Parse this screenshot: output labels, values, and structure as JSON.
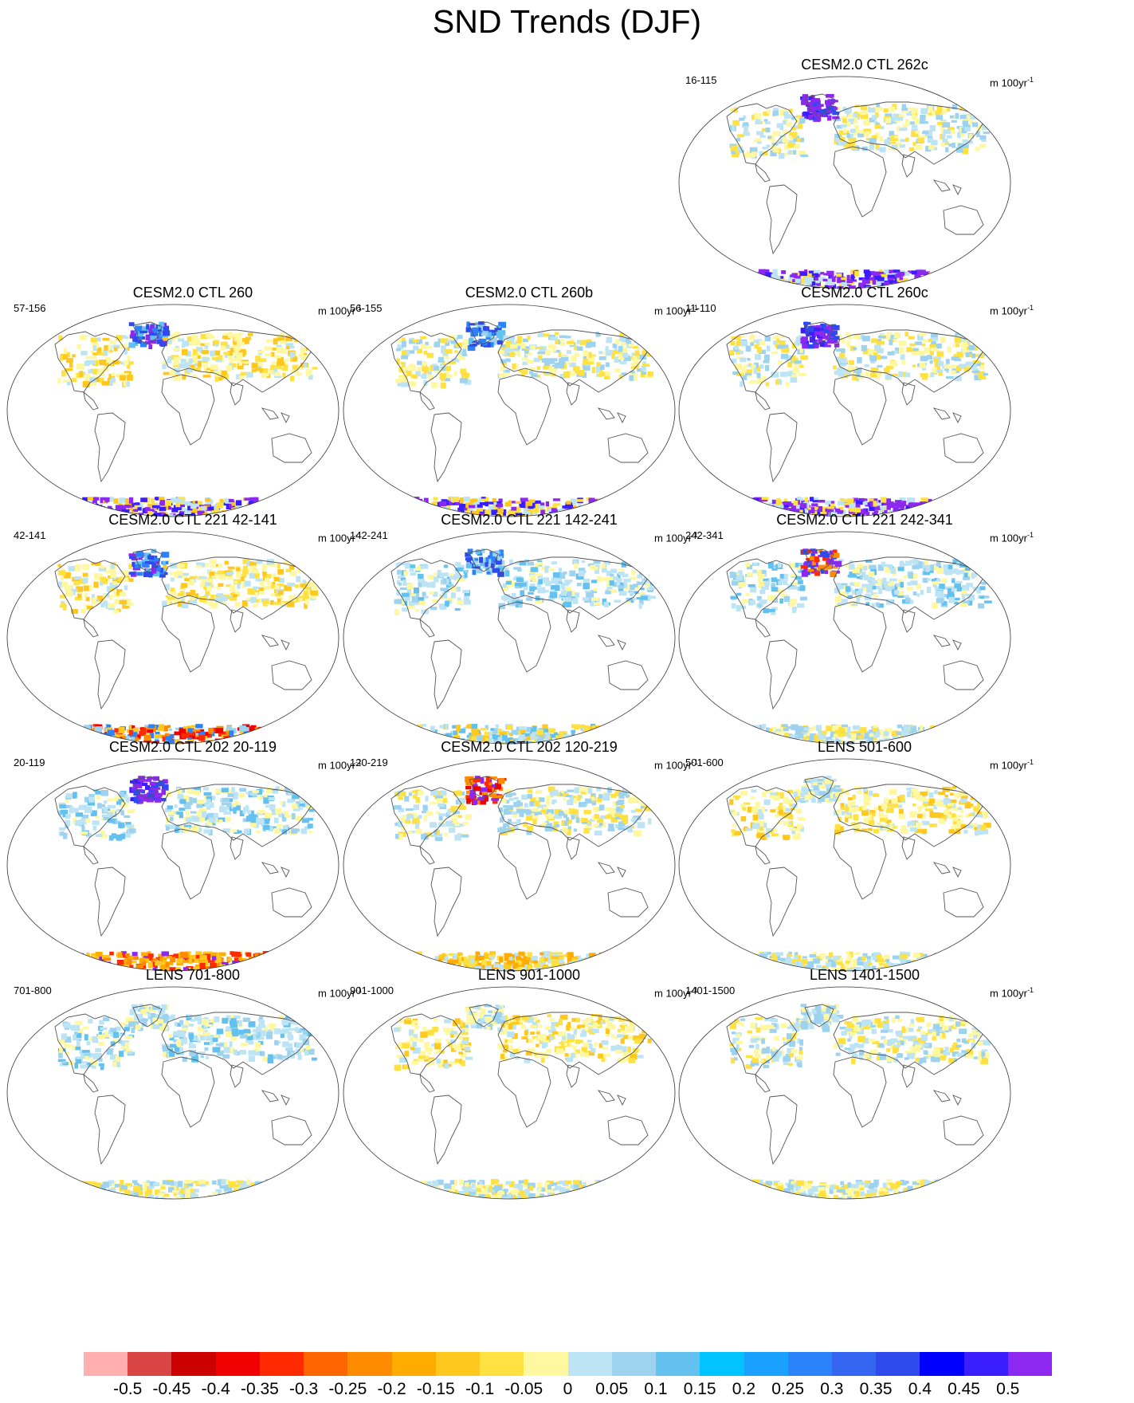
{
  "figure": {
    "title": "SND Trends (DJF)"
  },
  "unit": {
    "base": "m 100yr",
    "exponent": "-1"
  },
  "panels": [
    {
      "title": "CESM2.0 CTL 262c",
      "range": "16-115",
      "row": 0,
      "col": 2,
      "antarctic": "purple-strong",
      "greenland": "purple",
      "eurasia": "mixed-light"
    },
    {
      "title": "CESM2.0 CTL 260",
      "range": "57-156",
      "row": 1,
      "col": 0,
      "antarctic": "purple-yellow",
      "greenland": "blue-purple",
      "eurasia": "yellow"
    },
    {
      "title": "CESM2.0 CTL 260b",
      "range": "56-155",
      "row": 1,
      "col": 1,
      "antarctic": "purple-yellow",
      "greenland": "blue",
      "eurasia": "mixed-light"
    },
    {
      "title": "CESM2.0 CTL 260c",
      "range": "11-110",
      "row": 1,
      "col": 2,
      "antarctic": "purple-strong",
      "greenland": "purple",
      "eurasia": "mixed-light"
    },
    {
      "title": "CESM2.0 CTL 221 42-141",
      "range": "42-141",
      "row": 2,
      "col": 0,
      "antarctic": "red-blue",
      "greenland": "blue-purple",
      "eurasia": "yellow"
    },
    {
      "title": "CESM2.0 CTL 221 142-241",
      "range": "142-241",
      "row": 2,
      "col": 1,
      "antarctic": "yellow-blue",
      "greenland": "blue",
      "eurasia": "blue-light"
    },
    {
      "title": "CESM2.0 CTL 221 242-341",
      "range": "242-341",
      "row": 2,
      "col": 2,
      "antarctic": "light",
      "greenland": "orange-purple",
      "eurasia": "blue-light"
    },
    {
      "title": "CESM2.0 CTL 202 20-119",
      "range": "20-119",
      "row": 3,
      "col": 0,
      "antarctic": "orange-red",
      "greenland": "purple",
      "eurasia": "blue-light"
    },
    {
      "title": "CESM2.0 CTL 202 120-219",
      "range": "120-219",
      "row": 3,
      "col": 1,
      "antarctic": "orange",
      "greenland": "red",
      "eurasia": "mixed-light"
    },
    {
      "title": "LENS 501-600",
      "range": "501-600",
      "row": 3,
      "col": 2,
      "antarctic": "light",
      "greenland": "light",
      "eurasia": "yellow"
    },
    {
      "title": "LENS 701-800",
      "range": "701-800",
      "row": 4,
      "col": 0,
      "antarctic": "light",
      "greenland": "light",
      "eurasia": "blue-light"
    },
    {
      "title": "LENS 901-1000",
      "range": "901-1000",
      "row": 4,
      "col": 1,
      "antarctic": "light",
      "greenland": "light",
      "eurasia": "yellow"
    },
    {
      "title": "LENS 1401-1500",
      "range": "1401-1500",
      "row": 4,
      "col": 2,
      "antarctic": "light",
      "greenland": "light",
      "eurasia": "mixed-light"
    }
  ],
  "colorbar": {
    "colors": [
      "#ffafaf",
      "#d94545",
      "#cc0000",
      "#f00000",
      "#ff2a00",
      "#ff6600",
      "#ff8c00",
      "#ffab00",
      "#ffc81e",
      "#ffe141",
      "#fff8a0",
      "#bde4f4",
      "#9dd3ef",
      "#62c1ef",
      "#00c3ff",
      "#1aa0ff",
      "#2b82fa",
      "#3466f2",
      "#2e4aec",
      "#0000ff",
      "#3b1eff",
      "#8c28f0"
    ],
    "labels": [
      "-0.5",
      "-0.45",
      "-0.4",
      "-0.35",
      "-0.3",
      "-0.25",
      "-0.2",
      "-0.15",
      "-0.1",
      "-0.05",
      "0",
      "0.05",
      "0.1",
      "0.15",
      "0.2",
      "0.25",
      "0.3",
      "0.35",
      "0.4",
      "0.45",
      "0.5"
    ]
  }
}
